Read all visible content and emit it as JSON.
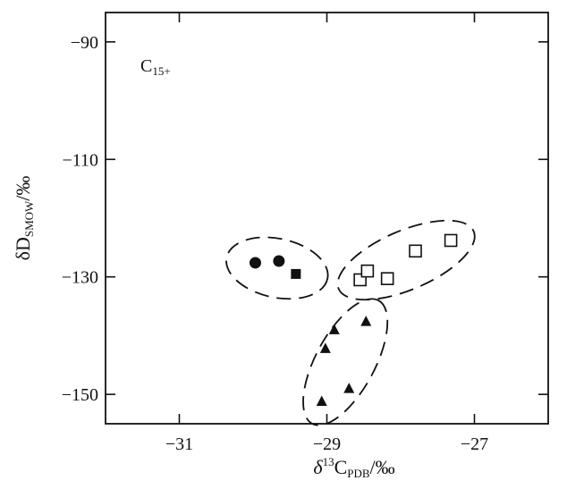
{
  "chart_data": {
    "type": "scatter",
    "title": "",
    "panel_label": {
      "main": "C",
      "sub": "15+"
    },
    "xlabel": {
      "prefix": "δ",
      "sup": "13",
      "main": "C",
      "sub": "PDB",
      "suffix": "/‰"
    },
    "ylabel": {
      "prefix": "δD",
      "sub": "SMOW",
      "suffix": "/‰"
    },
    "xlim": [
      -32.0,
      -26.0
    ],
    "ylim": [
      -155.0,
      -85.0
    ],
    "x_ticks": [
      -31,
      -29,
      -27
    ],
    "x_tick_labels": [
      "−31",
      "−29",
      "−27"
    ],
    "y_ticks": [
      -90,
      -110,
      -130,
      -150
    ],
    "y_tick_labels": [
      "−90",
      "−110",
      "−130",
      "−150"
    ],
    "grid": false,
    "legend": "none",
    "series": [
      {
        "marker": "filled-circle",
        "x": [
          -29.97,
          -29.65
        ],
        "y": [
          -127.6,
          -127.3
        ]
      },
      {
        "marker": "filled-square",
        "x": [
          -29.42
        ],
        "y": [
          -129.5
        ]
      },
      {
        "marker": "open-square",
        "x": [
          -28.55,
          -28.45,
          -28.18,
          -27.8,
          -27.32
        ],
        "y": [
          -130.5,
          -129.0,
          -130.3,
          -125.6,
          -123.8
        ]
      },
      {
        "marker": "filled-triangle",
        "x": [
          -29.07,
          -29.02,
          -28.9,
          -28.7,
          -28.47
        ],
        "y": [
          -151.2,
          -142.2,
          -139.0,
          -149.0,
          -137.6
        ]
      }
    ],
    "clusters": [
      {
        "points": [
          [
            -30.05,
            -127.5
          ],
          [
            -29.3,
            -129.5
          ]
        ]
      },
      {
        "points": [
          [
            -28.55,
            -130.5
          ],
          [
            -27.3,
            -123.8
          ]
        ]
      },
      {
        "points": [
          [
            -29.05,
            -151.5
          ],
          [
            -28.45,
            -137.5
          ]
        ]
      }
    ]
  }
}
